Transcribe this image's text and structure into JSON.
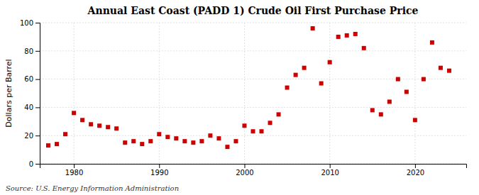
{
  "chart_data": {
    "type": "scatter",
    "title": "Annual East Coast (PADD 1) Crude Oil First Purchase Price",
    "y_label": "Dollars per Barrel",
    "annotation": "Source: U.S. Energy Information Administration",
    "color": "#CC0000",
    "marker": "square",
    "grid": true,
    "xlim": [
      1976,
      2026
    ],
    "ylim": [
      0,
      100
    ],
    "xticks": [
      1980,
      1990,
      2000,
      2010,
      2020
    ],
    "yticks": [
      0,
      20,
      40,
      60,
      80,
      100
    ],
    "x": [
      1977,
      1978,
      1979,
      1980,
      1981,
      1982,
      1983,
      1984,
      1985,
      1986,
      1987,
      1988,
      1989,
      1990,
      1991,
      1992,
      1993,
      1994,
      1995,
      1996,
      1997,
      1998,
      1999,
      2000,
      2001,
      2002,
      2003,
      2004,
      2005,
      2006,
      2007,
      2008,
      2009,
      2010,
      2011,
      2012,
      2013,
      2014,
      2015,
      2016,
      2017,
      2018,
      2019,
      2020,
      2021,
      2022,
      2023,
      2024
    ],
    "values": [
      13,
      14,
      21,
      36,
      31,
      28,
      27,
      26,
      25,
      15,
      16,
      14,
      16,
      21,
      19,
      18,
      16,
      15,
      16,
      20,
      18,
      12,
      16,
      27,
      23,
      23,
      29,
      35,
      54,
      63,
      68,
      96,
      57,
      72,
      90,
      91,
      92,
      82,
      38,
      35,
      44,
      60,
      51,
      31,
      60,
      86,
      68,
      66
    ]
  }
}
